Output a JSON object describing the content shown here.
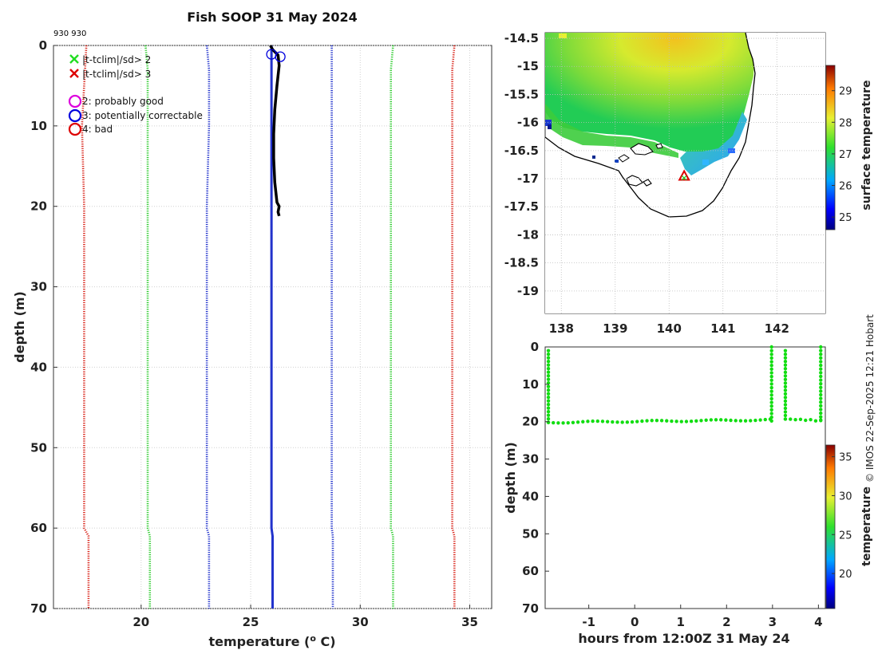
{
  "figure_title": "Fish SOOP 31 May 2024",
  "top_id": "930 930",
  "credit": "© IMOS 22-Sep-2025 12:21 Hobart",
  "colors": {
    "clim_sd3": "#d9261c",
    "clim_sd2": "#2ecc2e",
    "clim_mean_band": "#2233cc",
    "profile": "#000000",
    "legend_x_green": "#22dd22",
    "legend_x_red": "#dd0000",
    "legend_circle_magenta": "#dd00dd",
    "legend_circle_blue": "#0000dd",
    "legend_circle_red": "#dd0000",
    "track_dots": "#11dd11"
  },
  "chart_data": [
    {
      "id": "profile",
      "type": "line",
      "title": "Fish SOOP 31 May 2024",
      "xlabel": "temperature (° C)",
      "ylabel": "depth (m)",
      "xlim": [
        16,
        36
      ],
      "ylim": [
        0,
        70
      ],
      "y_reversed": true,
      "xticks": [
        20,
        25,
        30,
        35
      ],
      "yticks": [
        0,
        10,
        20,
        30,
        40,
        50,
        60,
        70
      ],
      "grid": true,
      "legend": {
        "position": "top-left",
        "entries": [
          {
            "marker": "x-green",
            "label": "|t-tclim|/sd> 2"
          },
          {
            "marker": "x-red",
            "label": "|t-tclim|/sd> 3"
          },
          {
            "marker": "o-magenta",
            "label": "2: probably good"
          },
          {
            "marker": "o-blue",
            "label": "3: potentially correctable"
          },
          {
            "marker": "o-red",
            "label": "4: bad"
          }
        ]
      },
      "series": [
        {
          "name": "clim -3sd",
          "color_key": "clim_sd3",
          "style": "dotted",
          "points": [
            [
              17.5,
              0
            ],
            [
              17.4,
              5
            ],
            [
              17.3,
              10
            ],
            [
              17.4,
              20
            ],
            [
              17.4,
              30
            ],
            [
              17.4,
              40
            ],
            [
              17.4,
              50
            ],
            [
              17.4,
              60
            ],
            [
              17.6,
              61
            ],
            [
              17.6,
              70
            ]
          ]
        },
        {
          "name": "clim -2sd",
          "color_key": "clim_sd2",
          "style": "dotted",
          "points": [
            [
              20.2,
              0
            ],
            [
              20.3,
              3
            ],
            [
              20.3,
              10
            ],
            [
              20.3,
              20
            ],
            [
              20.3,
              30
            ],
            [
              20.3,
              40
            ],
            [
              20.3,
              50
            ],
            [
              20.3,
              60
            ],
            [
              20.4,
              61
            ],
            [
              20.4,
              70
            ]
          ]
        },
        {
          "name": "clim -1sd",
          "color_key": "clim_mean_band",
          "style": "dotted",
          "points": [
            [
              23.0,
              0
            ],
            [
              23.1,
              3
            ],
            [
              23.1,
              10
            ],
            [
              23.0,
              20
            ],
            [
              23.0,
              30
            ],
            [
              23.0,
              40
            ],
            [
              23.0,
              50
            ],
            [
              23.0,
              60
            ],
            [
              23.1,
              61
            ],
            [
              23.1,
              70
            ]
          ]
        },
        {
          "name": "clim mean",
          "color_key": "clim_mean_band",
          "style": "solid",
          "points": [
            [
              25.95,
              0
            ],
            [
              25.95,
              10
            ],
            [
              25.95,
              20
            ],
            [
              25.95,
              30
            ],
            [
              25.95,
              40
            ],
            [
              25.95,
              50
            ],
            [
              25.95,
              60
            ],
            [
              26.0,
              61
            ],
            [
              26.0,
              70
            ]
          ]
        },
        {
          "name": "clim +1sd",
          "color_key": "clim_mean_band",
          "style": "dotted",
          "points": [
            [
              28.7,
              0
            ],
            [
              28.7,
              3
            ],
            [
              28.7,
              10
            ],
            [
              28.7,
              20
            ],
            [
              28.7,
              30
            ],
            [
              28.7,
              40
            ],
            [
              28.7,
              50
            ],
            [
              28.7,
              60
            ],
            [
              28.75,
              61
            ],
            [
              28.75,
              70
            ]
          ]
        },
        {
          "name": "clim +2sd",
          "color_key": "clim_sd2",
          "style": "dotted",
          "points": [
            [
              31.5,
              0
            ],
            [
              31.4,
              3
            ],
            [
              31.4,
              10
            ],
            [
              31.4,
              20
            ],
            [
              31.4,
              30
            ],
            [
              31.4,
              40
            ],
            [
              31.4,
              50
            ],
            [
              31.4,
              60
            ],
            [
              31.5,
              61
            ],
            [
              31.5,
              70
            ]
          ]
        },
        {
          "name": "clim +3sd",
          "color_key": "clim_sd3",
          "style": "dotted",
          "points": [
            [
              34.3,
              0
            ],
            [
              34.2,
              3
            ],
            [
              34.2,
              10
            ],
            [
              34.2,
              20
            ],
            [
              34.2,
              30
            ],
            [
              34.2,
              40
            ],
            [
              34.2,
              50
            ],
            [
              34.2,
              60
            ],
            [
              34.3,
              61
            ],
            [
              34.3,
              70
            ]
          ]
        },
        {
          "name": "profile",
          "color_key": "profile",
          "style": "solid",
          "points": [
            [
              25.9,
              0
            ],
            [
              26.0,
              0.5
            ],
            [
              26.25,
              1.2
            ],
            [
              26.3,
              2.5
            ],
            [
              26.2,
              5
            ],
            [
              26.1,
              8
            ],
            [
              26.05,
              11
            ],
            [
              26.05,
              14
            ],
            [
              26.1,
              17
            ],
            [
              26.2,
              19.5
            ],
            [
              26.3,
              20
            ],
            [
              26.25,
              20.7
            ],
            [
              26.3,
              21.2
            ]
          ]
        }
      ],
      "flag_circles": [
        {
          "x": 25.95,
          "y": 1.1,
          "flag": 3
        },
        {
          "x": 26.35,
          "y": 1.4,
          "flag": 3
        }
      ]
    },
    {
      "id": "map",
      "type": "heatmap",
      "colorbar_label": "surface temperature",
      "colorbar_ticks": [
        25,
        26,
        27,
        28,
        29
      ],
      "colorbar_range": [
        24.6,
        29.8
      ],
      "xlim": [
        137.7,
        142.9
      ],
      "ylim": [
        -19.4,
        -14.4
      ],
      "xticks": [
        138,
        139,
        140,
        141,
        142
      ],
      "yticks": [
        -14.5,
        -15,
        -15.5,
        -16,
        -16.5,
        -17,
        -17.5,
        -18,
        -18.5,
        -19
      ],
      "grid": true,
      "marker": {
        "lon": 140.28,
        "lat": -16.95,
        "type": "triangle-red"
      }
    },
    {
      "id": "track",
      "type": "scatter",
      "xlabel": "hours from 12:00Z 31 May 24",
      "ylabel": "depth (m)",
      "xlim": [
        -1.95,
        4.15
      ],
      "ylim": [
        0,
        70
      ],
      "y_reversed": true,
      "xticks": [
        -1,
        0,
        1,
        2,
        3,
        4
      ],
      "yticks": [
        0,
        10,
        20,
        30,
        40,
        50,
        60,
        70
      ],
      "colorbar_label": "temperature",
      "colorbar_ticks": [
        20,
        25,
        30,
        35
      ],
      "colorbar_range": [
        15.5,
        36.5
      ],
      "segments": [
        {
          "x0": -1.88,
          "x1": -1.88,
          "y0": 1,
          "y1": 20.2
        },
        {
          "x0": -1.88,
          "x1": 2.95,
          "y0": 20.2,
          "y1": 19.5
        },
        {
          "x0": 2.98,
          "x1": 2.98,
          "y0": 0,
          "y1": 19.8
        },
        {
          "x0": 3.28,
          "x1": 3.28,
          "y0": 1,
          "y1": 19.3
        },
        {
          "x0": 3.28,
          "x1": 4.05,
          "y0": 19.3,
          "y1": 19.7
        },
        {
          "x0": 4.05,
          "x1": 4.05,
          "y0": 0,
          "y1": 19.7
        }
      ]
    }
  ]
}
